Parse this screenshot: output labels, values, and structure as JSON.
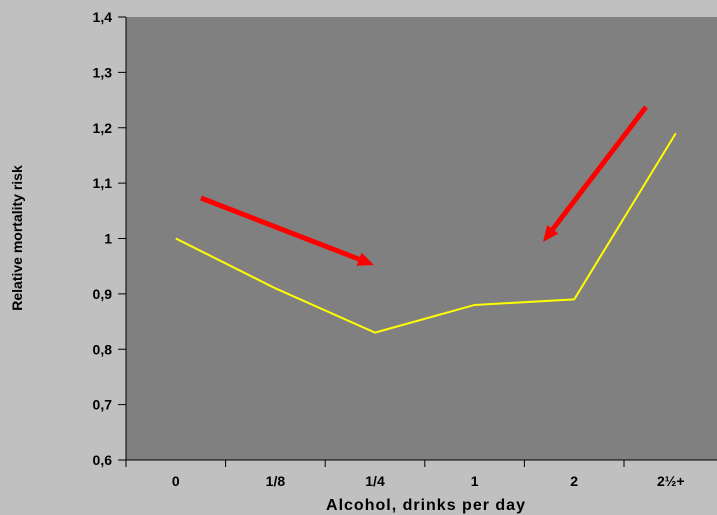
{
  "chart_data": {
    "type": "line",
    "title": "",
    "xlabel": "Alcohol, drinks per day",
    "ylabel": "Relative mortality risk",
    "categories": [
      "0",
      "1/8",
      "1/4",
      "1",
      "2",
      "2½+"
    ],
    "series": [
      {
        "values": [
          1.0,
          0.91,
          0.83,
          0.88,
          0.89,
          1.19
        ]
      }
    ],
    "ylim": [
      0.6,
      1.4
    ],
    "yticks": [
      "0,6",
      "0,7",
      "0,8",
      "0,9",
      "1",
      "1,1",
      "1,2",
      "1,3",
      "1,4"
    ],
    "grid": false,
    "annotations": [
      {
        "type": "arrow",
        "label": ""
      },
      {
        "type": "arrow",
        "label": ""
      }
    ],
    "colors": {
      "background": "#c0c0c0",
      "plot_area": "#808080",
      "line": "#ffff00",
      "arrow": "#ff0000"
    }
  }
}
